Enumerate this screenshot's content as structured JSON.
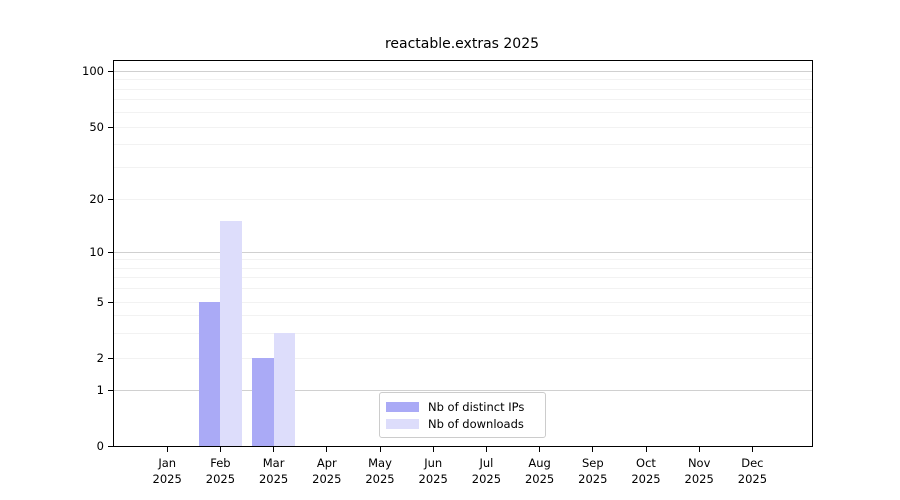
{
  "chart_data": {
    "type": "bar",
    "title": "reactable.extras 2025",
    "months": [
      {
        "label": "Jan",
        "year": "2025"
      },
      {
        "label": "Feb",
        "year": "2025"
      },
      {
        "label": "Mar",
        "year": "2025"
      },
      {
        "label": "Apr",
        "year": "2025"
      },
      {
        "label": "May",
        "year": "2025"
      },
      {
        "label": "Jun",
        "year": "2025"
      },
      {
        "label": "Jul",
        "year": "2025"
      },
      {
        "label": "Aug",
        "year": "2025"
      },
      {
        "label": "Sep",
        "year": "2025"
      },
      {
        "label": "Oct",
        "year": "2025"
      },
      {
        "label": "Nov",
        "year": "2025"
      },
      {
        "label": "Dec",
        "year": "2025"
      }
    ],
    "series": [
      {
        "key": "distinct-ips",
        "name": "Nb of distinct IPs",
        "color": "#aaaaf6",
        "values": [
          0,
          5,
          2,
          0,
          0,
          0,
          0,
          0,
          0,
          0,
          0,
          0
        ]
      },
      {
        "key": "downloads",
        "name": "Nb of downloads",
        "color": "#ddddfb",
        "values": [
          0,
          15,
          3,
          0,
          0,
          0,
          0,
          0,
          0,
          0,
          0,
          0
        ]
      }
    ],
    "yscale": "asinh",
    "ylim": [
      0,
      112
    ],
    "yticks": [
      0,
      1,
      2,
      5,
      10,
      20,
      50,
      100
    ],
    "gridlines": {
      "major": [
        1,
        10,
        100
      ],
      "minor": [
        2,
        3,
        4,
        5,
        6,
        7,
        8,
        9,
        20,
        30,
        40,
        50,
        60,
        70,
        80,
        90
      ]
    },
    "legend_position": "inside-bottom-center",
    "colors": {
      "axis": "#000000",
      "major_grid": "#d0d0d0",
      "minor_grid": "#f2f2f2",
      "background": "#ffffff"
    }
  }
}
